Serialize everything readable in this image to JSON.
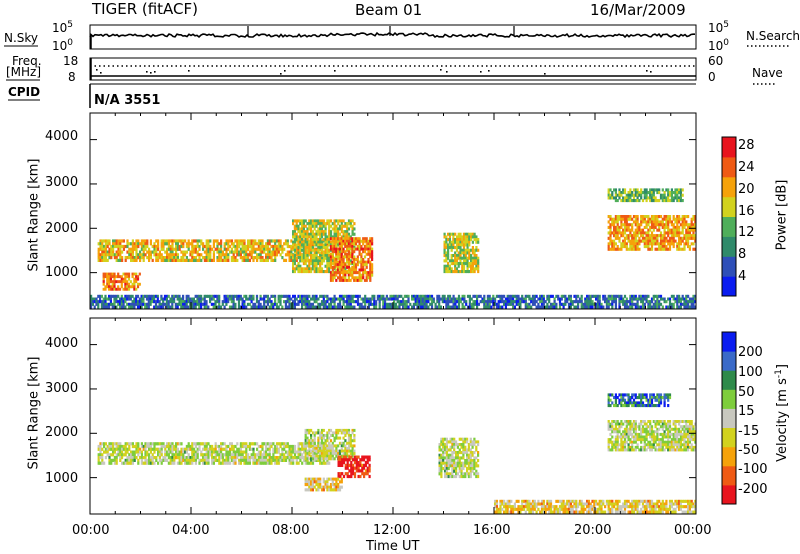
{
  "header": {
    "station": "TIGER (fitACF)",
    "beam": "Beam 01",
    "date": "16/Mar/2009"
  },
  "noise_panel": {
    "left_label": "N.Sky",
    "right_label": "N.Search",
    "left_ticks": [
      "10^5",
      "10^0"
    ],
    "right_ticks": [
      "10^5",
      "10^0"
    ]
  },
  "freq_panel": {
    "left_label_line1": "Freq.",
    "left_label_line2": "[MHz]",
    "left_ticks": [
      "18",
      "8"
    ],
    "right_label": "Nave",
    "right_ticks": [
      "60",
      "0"
    ]
  },
  "cpid_panel": {
    "label": "CPID",
    "value": "N/A 3551"
  },
  "time_axis": {
    "label": "Time UT",
    "ticks": [
      "00:00",
      "04:00",
      "08:00",
      "12:00",
      "16:00",
      "20:00",
      "00:00"
    ]
  },
  "chart_data": [
    {
      "type": "heatmap",
      "quantity": "Power",
      "ylabel": "Slant Range [km]",
      "xlabel": "Time UT",
      "colorbar_label": "Power [dB]",
      "colorbar_ticks": [
        "28",
        "24",
        "20",
        "16",
        "12",
        "8",
        "4"
      ],
      "ylim": [
        180,
        4600
      ],
      "yticks": [
        "4000",
        "3000",
        "2000",
        "1000"
      ],
      "x_range_hours": [
        0,
        24
      ],
      "scale": [
        0,
        32
      ],
      "colors": [
        "#0a1cf0",
        "#2e4fb8",
        "#2f8a6a",
        "#4fae5a",
        "#d2d21e",
        "#f5a20a",
        "#ef5a14",
        "#e8141e"
      ],
      "regions": [
        {
          "t0": 0.3,
          "t1": 9.5,
          "r0": 1250,
          "r1": 1750,
          "value": 20
        },
        {
          "t0": 0.5,
          "t1": 2.0,
          "r0": 600,
          "r1": 1000,
          "value": 24
        },
        {
          "t0": 8.0,
          "t1": 10.5,
          "r0": 1000,
          "r1": 2200,
          "value": 18
        },
        {
          "t0": 9.5,
          "t1": 11.2,
          "r0": 800,
          "r1": 1800,
          "value": 24
        },
        {
          "t0": 14.0,
          "t1": 15.4,
          "r0": 1000,
          "r1": 1900,
          "value": 18
        },
        {
          "t0": 20.5,
          "t1": 24.0,
          "r0": 1500,
          "r1": 2300,
          "value": 22
        },
        {
          "t0": 20.5,
          "t1": 23.5,
          "r0": 2600,
          "r1": 2900,
          "value": 14
        },
        {
          "t0": 0.0,
          "t1": 24.0,
          "r0": 200,
          "r1": 500,
          "value": 8
        }
      ]
    },
    {
      "type": "heatmap",
      "quantity": "Velocity",
      "ylabel": "Slant Range [km]",
      "xlabel": "Time UT",
      "colorbar_label": "Velocity [m s^-1]",
      "colorbar_ticks": [
        "200",
        "100",
        "50",
        "15",
        "-15",
        "-50",
        "-100",
        "-200"
      ],
      "ylim": [
        180,
        4600
      ],
      "yticks": [
        "4000",
        "3000",
        "2000",
        "1000"
      ],
      "x_range_hours": [
        0,
        24
      ],
      "scale": [
        -250,
        250
      ],
      "colors": [
        "#e8141e",
        "#ef5a14",
        "#f5a20a",
        "#d2d21e",
        "#c8c8bf",
        "#7ecd3c",
        "#2e8a4a",
        "#3a6ac8",
        "#0a1cf0"
      ],
      "regions": [
        {
          "t0": 0.3,
          "t1": 9.5,
          "r0": 1300,
          "r1": 1800,
          "value": 0
        },
        {
          "t0": 8.5,
          "t1": 10.5,
          "r0": 1400,
          "r1": 2100,
          "value": 0
        },
        {
          "t0": 9.8,
          "t1": 11.1,
          "r0": 1000,
          "r1": 1500,
          "value": -220
        },
        {
          "t0": 8.5,
          "t1": 10.0,
          "r0": 700,
          "r1": 1000,
          "value": -60
        },
        {
          "t0": 13.8,
          "t1": 15.4,
          "r0": 1000,
          "r1": 1900,
          "value": 0
        },
        {
          "t0": 20.5,
          "t1": 24.0,
          "r0": 1600,
          "r1": 2300,
          "value": 0
        },
        {
          "t0": 20.5,
          "t1": 23.0,
          "r0": 2600,
          "r1": 2900,
          "value": 150
        },
        {
          "t0": 16.0,
          "t1": 24.0,
          "r0": 200,
          "r1": 500,
          "value": -60
        }
      ]
    }
  ]
}
